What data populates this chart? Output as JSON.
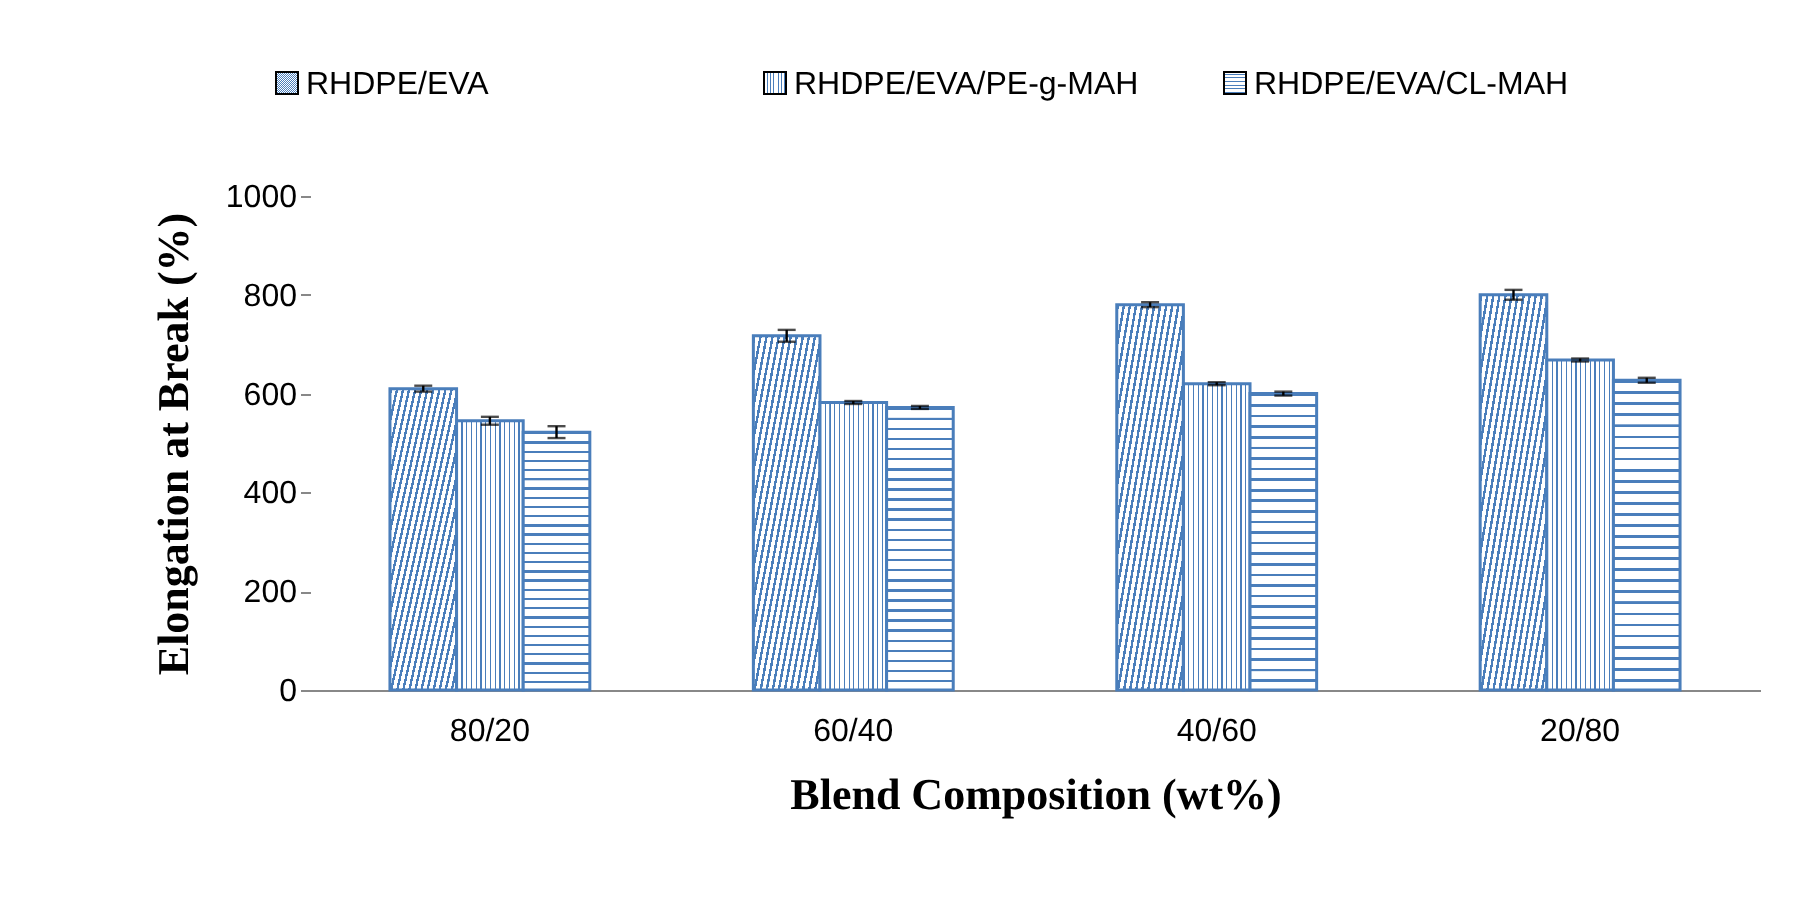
{
  "chart_data": {
    "type": "bar",
    "xlabel": "Blend Composition (wt%)",
    "ylabel": "Elongation at Break (%)",
    "categories": [
      "80/20",
      "60/40",
      "40/60",
      "20/80"
    ],
    "series": [
      {
        "name": "RHDPE/EVA",
        "color": "#4a7ebb",
        "values": [
          610,
          717,
          780,
          800
        ],
        "errors": [
          6,
          12,
          5,
          10
        ]
      },
      {
        "name": "RHDPE/EVA/PE-g-MAH",
        "color": "#4a7ebb",
        "values": [
          545,
          582,
          620,
          668
        ],
        "errors": [
          8,
          3,
          3,
          3
        ]
      },
      {
        "name": "RHDPE/EVA/CL-MAH",
        "color": "#4a7ebb",
        "values": [
          522,
          572,
          600,
          627
        ],
        "errors": [
          12,
          3,
          4,
          5
        ]
      }
    ],
    "ylim": [
      0,
      1000
    ],
    "yticks": [
      0,
      200,
      400,
      600,
      800,
      1000
    ],
    "grid": false,
    "legend": "top"
  }
}
